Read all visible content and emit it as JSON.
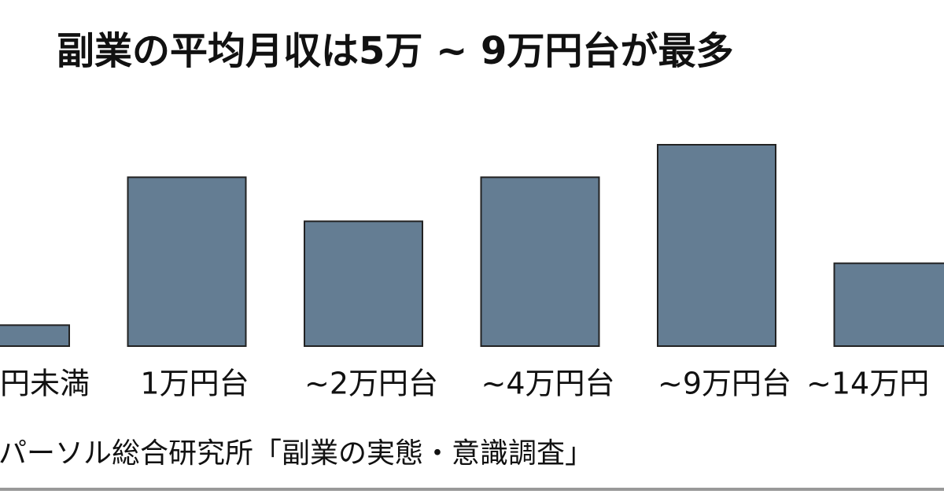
{
  "chart_data": {
    "type": "bar",
    "title": "副業の平均月収は5万 ~ 9万円台が最多",
    "categories": [
      "円未満",
      "1万円台",
      "~2万円台",
      "~4万円台",
      "~9万円台",
      "~14万円"
    ],
    "values": [
      2.0,
      16.1,
      11.9,
      16.1,
      19.2,
      7.9
    ],
    "color": "#647d93",
    "ylim": [
      0,
      24
    ],
    "source": "パーソル総合研究所「副業の実態・意識調査」"
  }
}
